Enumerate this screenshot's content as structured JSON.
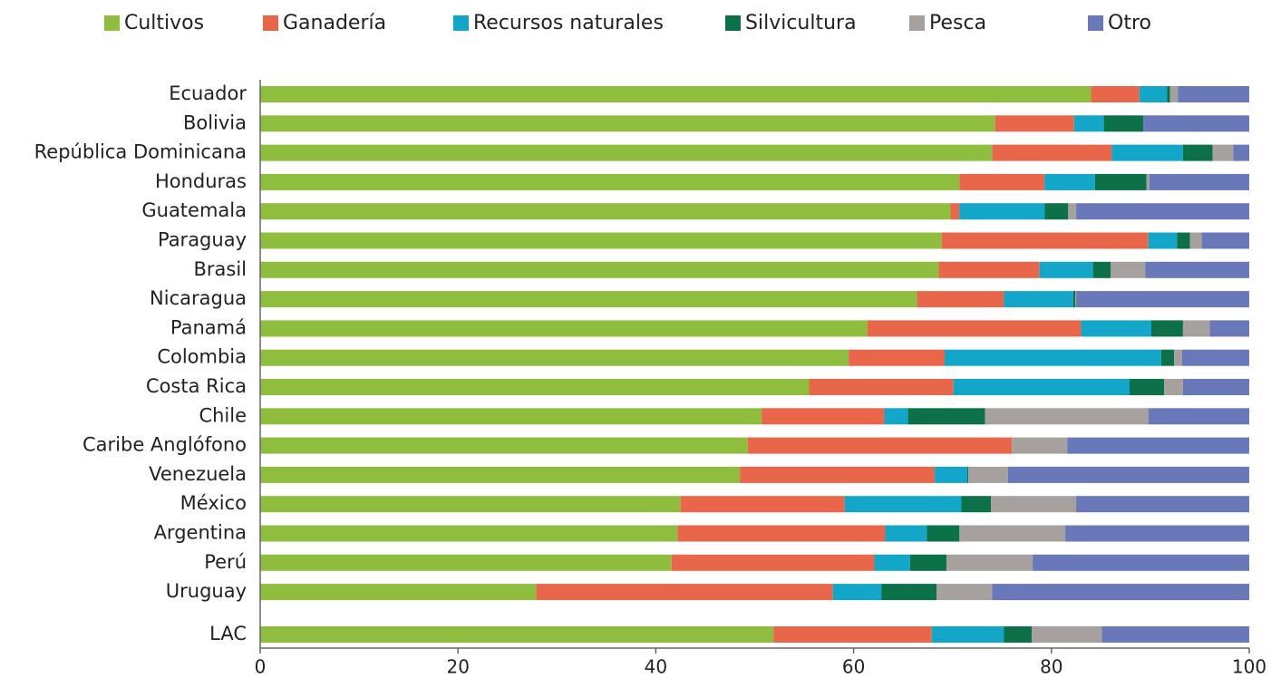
{
  "chart_data": {
    "type": "stacked_bar_horizontal",
    "categories": [
      "Ecuador",
      "Bolivia",
      "República Dominicana",
      "Honduras",
      "Guatemala",
      "Paraguay",
      "Brasil",
      "Nicaragua",
      "Panamá",
      "Colombia",
      "Costa Rica",
      "Chile",
      "Caribe Anglófono",
      "Venezuela",
      "México",
      "Argentina",
      "Perú",
      "Uruguay",
      "LAC"
    ],
    "series": [
      {
        "name": "Cultivos",
        "color": "#8fbe3f",
        "values": [
          84.0,
          74.3,
          74.0,
          70.7,
          69.8,
          68.9,
          68.6,
          66.4,
          61.4,
          59.5,
          55.5,
          50.7,
          49.3,
          48.5,
          42.5,
          42.2,
          41.6,
          27.9,
          51.9
        ]
      },
      {
        "name": "Ganadería",
        "color": "#e8674a",
        "values": [
          4.9,
          8.0,
          12.1,
          8.6,
          0.9,
          20.9,
          10.2,
          8.8,
          21.6,
          9.7,
          14.6,
          12.4,
          26.7,
          19.7,
          16.6,
          21.0,
          20.5,
          30.0,
          16.0
        ]
      },
      {
        "name": "Recursos naturales",
        "color": "#13a6c9",
        "values": [
          2.8,
          3.0,
          7.2,
          5.1,
          8.6,
          2.9,
          5.4,
          7.0,
          7.1,
          21.9,
          17.8,
          2.4,
          0,
          3.3,
          11.8,
          4.2,
          3.6,
          4.9,
          7.3
        ]
      },
      {
        "name": "Silvicultura",
        "color": "#0c7048",
        "values": [
          0.3,
          4.0,
          3.0,
          5.2,
          2.4,
          1.3,
          1.8,
          0.2,
          3.2,
          1.3,
          3.5,
          7.8,
          0,
          0.1,
          3.0,
          3.3,
          3.7,
          5.6,
          2.8
        ]
      },
      {
        "name": "Pesca",
        "color": "#a6a09f",
        "values": [
          0.8,
          0,
          2.1,
          0.3,
          0.8,
          1.2,
          3.5,
          0.1,
          2.7,
          0.8,
          1.9,
          16.5,
          5.6,
          4.0,
          8.6,
          10.7,
          8.7,
          5.6,
          7.1
        ]
      },
      {
        "name": "Otro",
        "color": "#6878b8",
        "values": [
          7.2,
          10.7,
          1.6,
          10.1,
          17.5,
          4.8,
          10.5,
          17.5,
          4.0,
          6.8,
          6.7,
          10.2,
          18.4,
          24.4,
          17.5,
          18.6,
          21.9,
          26.0,
          14.9
        ]
      }
    ],
    "xlim": [
      0,
      100
    ],
    "xticks": [
      0,
      20,
      40,
      60,
      80,
      100
    ],
    "legend": "top"
  }
}
